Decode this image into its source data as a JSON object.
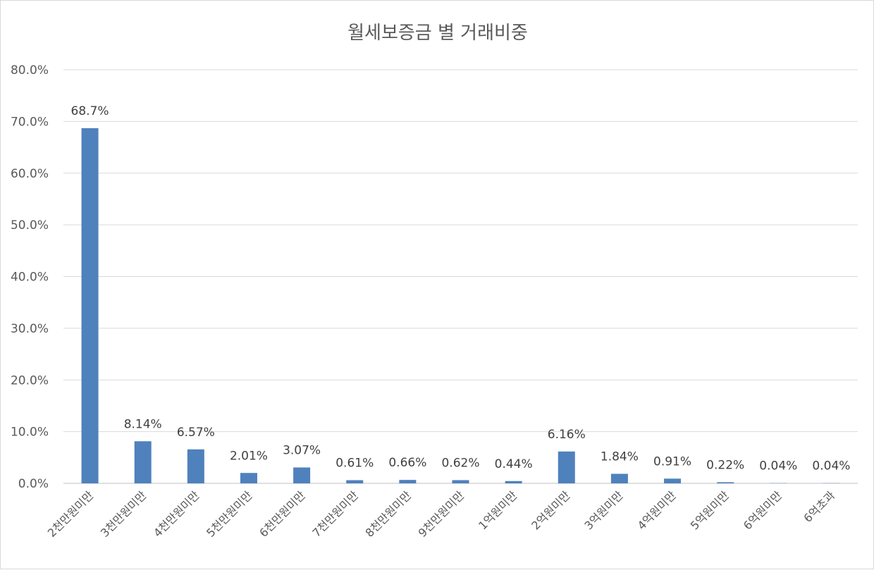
{
  "chart_data": {
    "type": "bar",
    "title": "월세보증금 별 거래비중",
    "xlabel": "",
    "ylabel": "",
    "ylim": [
      0,
      80
    ],
    "y_ticks": [
      0,
      10,
      20,
      30,
      40,
      50,
      60,
      70,
      80
    ],
    "y_tick_labels": [
      "0.0%",
      "10.0%",
      "20.0%",
      "30.0%",
      "40.0%",
      "50.0%",
      "60.0%",
      "70.0%",
      "80.0%"
    ],
    "grid": true,
    "legend": "none",
    "bar_color": "#4f81bd",
    "categories": [
      "2천만원미만",
      "3천만원미만",
      "4천만원미만",
      "5천만원미만",
      "6천만원미만",
      "7천만원미만",
      "8천만원미만",
      "9천만원미만",
      "1억원미만",
      "2억원미만",
      "3억원미만",
      "4억원미만",
      "5억원미만",
      "6억원미만",
      "6억초과"
    ],
    "values": [
      68.7,
      8.14,
      6.57,
      2.01,
      3.07,
      0.61,
      0.66,
      0.62,
      0.44,
      6.16,
      1.84,
      0.91,
      0.22,
      0.04,
      0.04
    ],
    "data_labels": [
      "68.7%",
      "8.14%",
      "6.57%",
      "2.01%",
      "3.07%",
      "0.61%",
      "0.66%",
      "0.62%",
      "0.44%",
      "6.16%",
      "1.84%",
      "0.91%",
      "0.22%",
      "0.04%",
      "0.04%"
    ]
  }
}
